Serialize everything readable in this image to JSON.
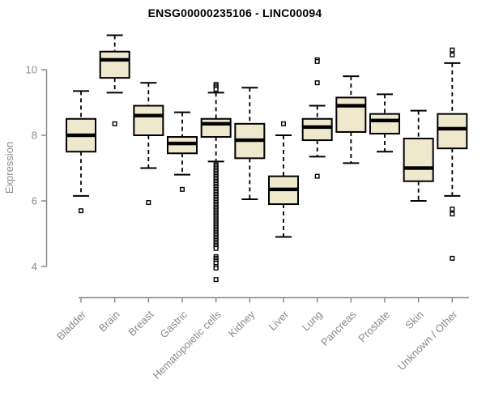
{
  "colors": {
    "box_fill": "#EEE8CD",
    "box_stroke": "#000000",
    "median": "#000000",
    "whisker": "#000000",
    "outlier_stroke": "#000000",
    "outlier_fill": "#FFFFFF",
    "axis": "#8A8A8A",
    "title": "#000000",
    "background": "#FFFFFF"
  },
  "chart_data": {
    "type": "boxplot",
    "title": "ENSG00000235106 - LINC00094",
    "xlabel": "",
    "ylabel": "Expression",
    "yticks": [
      4,
      6,
      8,
      10
    ],
    "ylim": [
      3.3,
      11.3
    ],
    "grid": false,
    "legend": "none",
    "categories": [
      "Bladder",
      "Brain",
      "Breast",
      "Gastric",
      "Hematopoietic cells",
      "Kidney",
      "Liver",
      "Lung",
      "Pancreas",
      "Prostate",
      "Skin",
      "Unknown / Other"
    ],
    "series": [
      {
        "name": "Bladder",
        "whisker_low": 6.15,
        "q1": 7.5,
        "median": 8.0,
        "q3": 8.5,
        "whisker_high": 9.35,
        "outliers": [
          5.7
        ]
      },
      {
        "name": "Brain",
        "whisker_low": 9.3,
        "q1": 9.75,
        "median": 10.3,
        "q3": 10.55,
        "whisker_high": 11.05,
        "outliers": [
          8.35
        ]
      },
      {
        "name": "Breast",
        "whisker_low": 7.0,
        "q1": 8.0,
        "median": 8.6,
        "q3": 8.9,
        "whisker_high": 9.6,
        "outliers": [
          5.95
        ]
      },
      {
        "name": "Gastric",
        "whisker_low": 6.8,
        "q1": 7.45,
        "median": 7.75,
        "q3": 7.95,
        "whisker_high": 8.7,
        "outliers": [
          6.35
        ]
      },
      {
        "name": "Hematopoietic cells",
        "whisker_low": 7.2,
        "q1": 7.95,
        "median": 8.35,
        "q3": 8.5,
        "whisker_high": 9.3,
        "outliers": [
          9.55,
          9.5,
          9.45,
          9.4,
          7.1,
          7.05,
          7.0,
          6.95,
          6.9,
          6.85,
          6.8,
          6.75,
          6.7,
          6.65,
          6.6,
          6.55,
          6.5,
          6.45,
          6.4,
          6.35,
          6.3,
          6.25,
          6.2,
          6.15,
          6.1,
          6.05,
          6.0,
          5.95,
          5.9,
          5.85,
          5.8,
          5.75,
          5.7,
          5.65,
          5.6,
          5.55,
          5.5,
          5.45,
          5.4,
          5.35,
          5.3,
          5.25,
          5.2,
          5.15,
          5.1,
          5.05,
          5.0,
          4.95,
          4.9,
          4.85,
          4.8,
          4.75,
          4.7,
          4.65,
          4.6,
          4.55,
          4.3,
          4.25,
          4.2,
          4.15,
          4.1,
          4.0,
          3.95,
          3.6
        ]
      },
      {
        "name": "Kidney",
        "whisker_low": 6.05,
        "q1": 7.3,
        "median": 7.85,
        "q3": 8.35,
        "whisker_high": 9.45,
        "outliers": []
      },
      {
        "name": "Liver",
        "whisker_low": 4.9,
        "q1": 5.9,
        "median": 6.35,
        "q3": 6.75,
        "whisker_high": 8.0,
        "outliers": [
          8.35
        ]
      },
      {
        "name": "Lung",
        "whisker_low": 7.35,
        "q1": 7.85,
        "median": 8.25,
        "q3": 8.5,
        "whisker_high": 8.9,
        "outliers": [
          10.3,
          10.25,
          9.6,
          6.75
        ]
      },
      {
        "name": "Pancreas",
        "whisker_low": 7.15,
        "q1": 8.1,
        "median": 8.9,
        "q3": 9.15,
        "whisker_high": 9.8,
        "outliers": []
      },
      {
        "name": "Prostate",
        "whisker_low": 7.5,
        "q1": 8.05,
        "median": 8.45,
        "q3": 8.65,
        "whisker_high": 9.25,
        "outliers": []
      },
      {
        "name": "Skin",
        "whisker_low": 6.0,
        "q1": 6.6,
        "median": 7.0,
        "q3": 7.9,
        "whisker_high": 8.75,
        "outliers": []
      },
      {
        "name": "Unknown / Other",
        "whisker_low": 6.15,
        "q1": 7.6,
        "median": 8.2,
        "q3": 8.65,
        "whisker_high": 10.2,
        "outliers": [
          10.6,
          10.45,
          5.75,
          5.6,
          4.25
        ]
      }
    ]
  }
}
